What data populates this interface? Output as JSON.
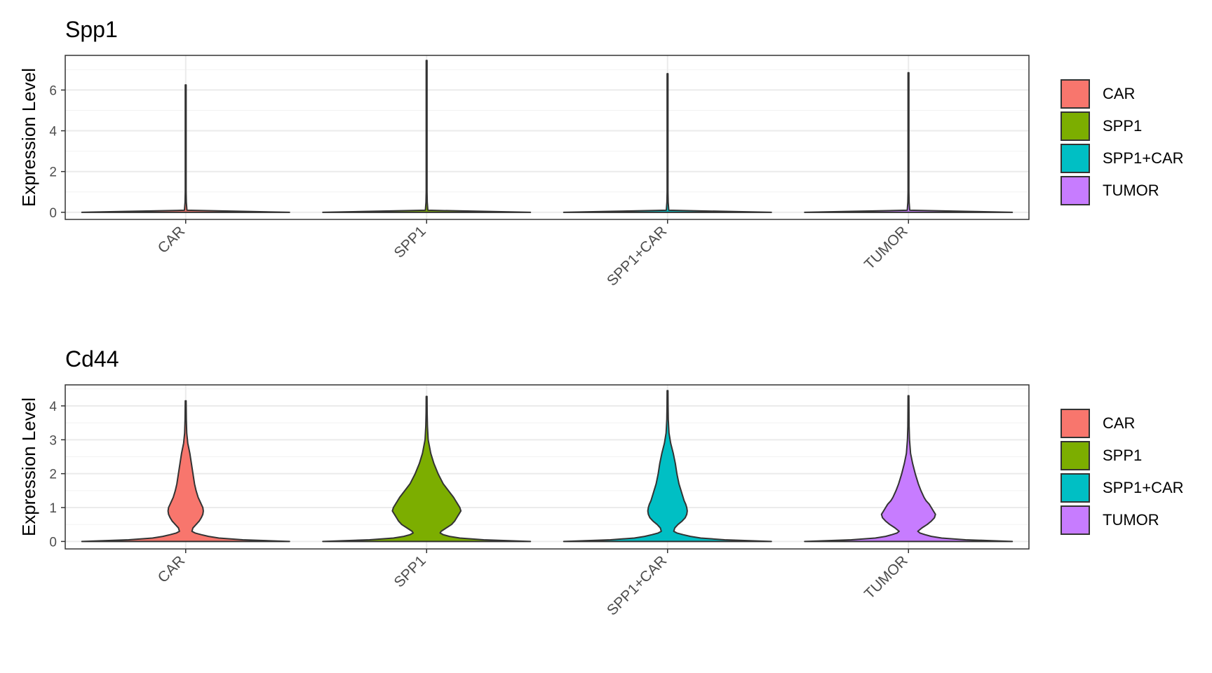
{
  "chart_data": [
    {
      "type": "violin",
      "title": "Spp1",
      "ylabel": "Expression Level",
      "xlabel": "",
      "ylim": [
        -0.35,
        7.7
      ],
      "yticks": [
        0,
        2,
        4,
        6
      ],
      "categories": [
        "CAR",
        "SPP1",
        "SPP1+CAR",
        "TUMOR"
      ],
      "colors": [
        "#F8766D",
        "#7CAE00",
        "#00BFC4",
        "#C77CFF"
      ],
      "max_values": [
        6.25,
        7.45,
        6.8,
        6.85
      ],
      "density_profile": [
        [
          0,
          1.0
        ],
        [
          0.04,
          0.6
        ],
        [
          0.1,
          0.012
        ],
        [
          0.5,
          0.006
        ],
        [
          1.0,
          0.004
        ]
      ],
      "legend": {
        "entries": [
          "CAR",
          "SPP1",
          "SPP1+CAR",
          "TUMOR"
        ],
        "position": "right"
      },
      "grid": true
    },
    {
      "type": "violin",
      "title": "Cd44",
      "ylabel": "Expression Level",
      "xlabel": "",
      "ylim": [
        -0.22,
        4.62
      ],
      "yticks": [
        0,
        1,
        2,
        3,
        4
      ],
      "categories": [
        "CAR",
        "SPP1",
        "SPP1+CAR",
        "TUMOR"
      ],
      "colors": [
        "#F8766D",
        "#7CAE00",
        "#00BFC4",
        "#C77CFF"
      ],
      "max_values": [
        4.15,
        4.28,
        4.45,
        4.3
      ],
      "density_profile": [
        [
          [
            0,
            1.0
          ],
          [
            0.05,
            0.55
          ],
          [
            0.1,
            0.32
          ],
          [
            0.15,
            0.22
          ],
          [
            0.2,
            0.15
          ],
          [
            0.25,
            0.09
          ],
          [
            0.3,
            0.06
          ],
          [
            0.4,
            0.07
          ],
          [
            0.5,
            0.1
          ],
          [
            0.6,
            0.13
          ],
          [
            0.7,
            0.15
          ],
          [
            0.8,
            0.165
          ],
          [
            0.9,
            0.17
          ],
          [
            1.0,
            0.165
          ],
          [
            1.1,
            0.15
          ],
          [
            1.2,
            0.135
          ],
          [
            1.3,
            0.12
          ],
          [
            1.5,
            0.1
          ],
          [
            1.7,
            0.085
          ],
          [
            2.0,
            0.07
          ],
          [
            2.3,
            0.055
          ],
          [
            2.6,
            0.04
          ],
          [
            2.9,
            0.02
          ],
          [
            3.2,
            0.01
          ],
          [
            3.6,
            0.006
          ],
          [
            4.15,
            0.004
          ]
        ],
        [
          [
            0,
            1.0
          ],
          [
            0.05,
            0.55
          ],
          [
            0.1,
            0.32
          ],
          [
            0.15,
            0.22
          ],
          [
            0.2,
            0.16
          ],
          [
            0.25,
            0.13
          ],
          [
            0.3,
            0.14
          ],
          [
            0.4,
            0.19
          ],
          [
            0.5,
            0.24
          ],
          [
            0.6,
            0.27
          ],
          [
            0.7,
            0.29
          ],
          [
            0.8,
            0.31
          ],
          [
            0.9,
            0.33
          ],
          [
            1.0,
            0.32
          ],
          [
            1.1,
            0.3
          ],
          [
            1.2,
            0.28
          ],
          [
            1.3,
            0.26
          ],
          [
            1.5,
            0.21
          ],
          [
            1.7,
            0.16
          ],
          [
            2.0,
            0.11
          ],
          [
            2.3,
            0.07
          ],
          [
            2.6,
            0.04
          ],
          [
            3.0,
            0.015
          ],
          [
            3.4,
            0.008
          ],
          [
            3.8,
            0.005
          ],
          [
            4.28,
            0.004
          ]
        ],
        [
          [
            0,
            1.0
          ],
          [
            0.05,
            0.55
          ],
          [
            0.1,
            0.32
          ],
          [
            0.15,
            0.22
          ],
          [
            0.2,
            0.15
          ],
          [
            0.25,
            0.09
          ],
          [
            0.3,
            0.06
          ],
          [
            0.4,
            0.07
          ],
          [
            0.5,
            0.1
          ],
          [
            0.6,
            0.14
          ],
          [
            0.7,
            0.17
          ],
          [
            0.8,
            0.185
          ],
          [
            0.9,
            0.19
          ],
          [
            1.0,
            0.185
          ],
          [
            1.1,
            0.175
          ],
          [
            1.2,
            0.16
          ],
          [
            1.3,
            0.15
          ],
          [
            1.5,
            0.13
          ],
          [
            1.7,
            0.11
          ],
          [
            2.0,
            0.09
          ],
          [
            2.3,
            0.075
          ],
          [
            2.6,
            0.055
          ],
          [
            2.9,
            0.03
          ],
          [
            3.2,
            0.014
          ],
          [
            3.6,
            0.007
          ],
          [
            4.0,
            0.005
          ],
          [
            4.45,
            0.004
          ]
        ],
        [
          [
            0,
            1.0
          ],
          [
            0.05,
            0.55
          ],
          [
            0.1,
            0.32
          ],
          [
            0.15,
            0.22
          ],
          [
            0.2,
            0.16
          ],
          [
            0.25,
            0.11
          ],
          [
            0.3,
            0.09
          ],
          [
            0.4,
            0.13
          ],
          [
            0.5,
            0.18
          ],
          [
            0.6,
            0.22
          ],
          [
            0.7,
            0.25
          ],
          [
            0.8,
            0.26
          ],
          [
            0.9,
            0.24
          ],
          [
            1.0,
            0.22
          ],
          [
            1.1,
            0.2
          ],
          [
            1.2,
            0.17
          ],
          [
            1.3,
            0.15
          ],
          [
            1.5,
            0.12
          ],
          [
            1.7,
            0.095
          ],
          [
            2.0,
            0.065
          ],
          [
            2.3,
            0.04
          ],
          [
            2.6,
            0.02
          ],
          [
            3.0,
            0.01
          ],
          [
            3.4,
            0.006
          ],
          [
            3.8,
            0.005
          ],
          [
            4.3,
            0.004
          ]
        ]
      ],
      "legend": {
        "entries": [
          "CAR",
          "SPP1",
          "SPP1+CAR",
          "TUMOR"
        ],
        "position": "right"
      },
      "grid": true
    }
  ]
}
